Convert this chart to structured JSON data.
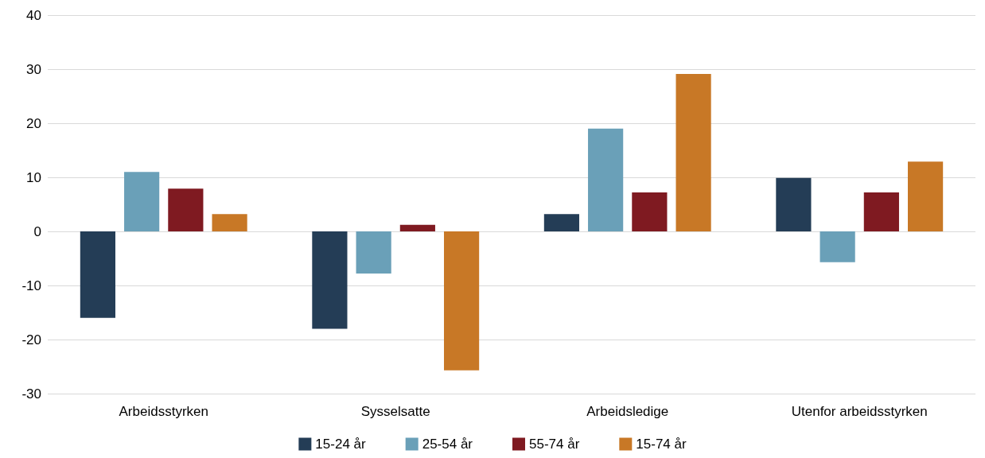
{
  "chart_data": {
    "type": "bar",
    "categories": [
      "Arbeidsstyrken",
      "Sysselsatte",
      "Arbeidsledige",
      "Utenfor arbeidsstyrken"
    ],
    "series": [
      {
        "name": "15-24 år",
        "color": "#243d56",
        "values": [
          -16,
          -18,
          3.2,
          9.9
        ]
      },
      {
        "name": "25-54 år",
        "color": "#6aa0b8",
        "values": [
          11,
          -7.8,
          19,
          -5.7
        ]
      },
      {
        "name": "55-74 år",
        "color": "#7f1a21",
        "values": [
          7.9,
          1.2,
          7.2,
          7.2
        ]
      },
      {
        "name": "15-74 år",
        "color": "#c87826",
        "values": [
          3.2,
          -25.7,
          29.1,
          12.9
        ]
      }
    ],
    "ylim": [
      -30,
      40
    ],
    "yticks": [
      -30,
      -20,
      -10,
      0,
      10,
      20,
      30,
      40
    ],
    "grid": "y",
    "legend": "bottom"
  }
}
